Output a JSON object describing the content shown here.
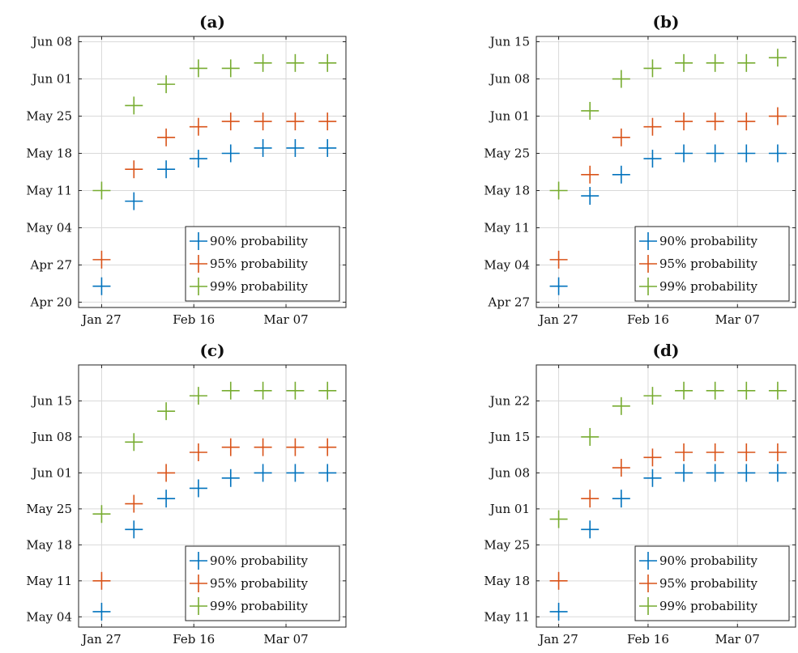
{
  "colors": {
    "p90": "#0072BD",
    "p95": "#D95319",
    "p99": "#77AC30",
    "grid": "#d9d9d9",
    "frame": "#222222"
  },
  "chart_data": [
    {
      "type": "scatter",
      "title": "(a)",
      "xlabel": "",
      "ylabel": "",
      "x": [
        "2020-01-27",
        "2020-02-03",
        "2020-02-10",
        "2020-02-17",
        "2020-02-24",
        "2020-03-02",
        "2020-03-09",
        "2020-03-16"
      ],
      "xticks": [
        "Jan  27",
        "Feb  16",
        "Mar  07"
      ],
      "xtick_values": [
        "2020-01-27",
        "2020-02-16",
        "2020-03-07"
      ],
      "xlim": [
        "2020-01-22",
        "2020-03-20"
      ],
      "yticks": [
        "Apr  20",
        "Apr  27",
        "May  04",
        "May  11",
        "May  18",
        "May  25",
        "Jun  01",
        "Jun  08"
      ],
      "ytick_values": [
        "2020-04-20",
        "2020-04-27",
        "2020-05-04",
        "2020-05-11",
        "2020-05-18",
        "2020-05-25",
        "2020-06-01",
        "2020-06-08"
      ],
      "ylim": [
        "2020-04-19",
        "2020-06-09"
      ],
      "grid": true,
      "legend_position": "bottom-right",
      "series": [
        {
          "name": "90% probability",
          "color_key": "p90",
          "values": [
            "2020-04-23",
            "2020-05-09",
            "2020-05-15",
            "2020-05-17",
            "2020-05-18",
            "2020-05-19",
            "2020-05-19",
            "2020-05-19"
          ]
        },
        {
          "name": "95% probability",
          "color_key": "p95",
          "values": [
            "2020-04-28",
            "2020-05-15",
            "2020-05-21",
            "2020-05-23",
            "2020-05-24",
            "2020-05-24",
            "2020-05-24",
            "2020-05-24"
          ]
        },
        {
          "name": "99% probability",
          "color_key": "p99",
          "values": [
            "2020-05-11",
            "2020-05-27",
            "2020-05-31",
            "2020-06-03",
            "2020-06-03",
            "2020-06-04",
            "2020-06-04",
            "2020-06-04"
          ]
        }
      ]
    },
    {
      "type": "scatter",
      "title": "(b)",
      "xlabel": "",
      "ylabel": "",
      "x": [
        "2020-01-27",
        "2020-02-03",
        "2020-02-10",
        "2020-02-17",
        "2020-02-24",
        "2020-03-02",
        "2020-03-09",
        "2020-03-16"
      ],
      "xticks": [
        "Jan  27",
        "Feb  16",
        "Mar  07"
      ],
      "xtick_values": [
        "2020-01-27",
        "2020-02-16",
        "2020-03-07"
      ],
      "xlim": [
        "2020-01-22",
        "2020-03-20"
      ],
      "yticks": [
        "Apr  27",
        "May  04",
        "May  11",
        "May  18",
        "May  25",
        "Jun  01",
        "Jun  08",
        "Jun  15"
      ],
      "ytick_values": [
        "2020-04-27",
        "2020-05-04",
        "2020-05-11",
        "2020-05-18",
        "2020-05-25",
        "2020-06-01",
        "2020-06-08",
        "2020-06-15"
      ],
      "ylim": [
        "2020-04-26",
        "2020-06-16"
      ],
      "grid": true,
      "legend_position": "bottom-right",
      "series": [
        {
          "name": "90% probability",
          "color_key": "p90",
          "values": [
            "2020-04-30",
            "2020-05-17",
            "2020-05-21",
            "2020-05-24",
            "2020-05-25",
            "2020-05-25",
            "2020-05-25",
            "2020-05-25"
          ]
        },
        {
          "name": "95% probability",
          "color_key": "p95",
          "values": [
            "2020-05-05",
            "2020-05-21",
            "2020-05-28",
            "2020-05-30",
            "2020-05-31",
            "2020-05-31",
            "2020-05-31",
            "2020-06-01"
          ]
        },
        {
          "name": "99% probability",
          "color_key": "p99",
          "values": [
            "2020-05-18",
            "2020-06-02",
            "2020-06-08",
            "2020-06-10",
            "2020-06-11",
            "2020-06-11",
            "2020-06-11",
            "2020-06-12"
          ]
        }
      ]
    },
    {
      "type": "scatter",
      "title": "(c)",
      "xlabel": "",
      "ylabel": "",
      "x": [
        "2020-01-27",
        "2020-02-03",
        "2020-02-10",
        "2020-02-17",
        "2020-02-24",
        "2020-03-02",
        "2020-03-09",
        "2020-03-16"
      ],
      "xticks": [
        "Jan  27",
        "Feb  16",
        "Mar  07"
      ],
      "xtick_values": [
        "2020-01-27",
        "2020-02-16",
        "2020-03-07"
      ],
      "xlim": [
        "2020-01-22",
        "2020-03-20"
      ],
      "yticks": [
        "May  04",
        "May  11",
        "May  18",
        "May  25",
        "Jun  01",
        "Jun  08",
        "Jun  15"
      ],
      "ytick_values": [
        "2020-05-04",
        "2020-05-11",
        "2020-05-18",
        "2020-05-25",
        "2020-06-01",
        "2020-06-08",
        "2020-06-15"
      ],
      "ylim": [
        "2020-05-02",
        "2020-06-22"
      ],
      "grid": true,
      "legend_position": "bottom-right",
      "series": [
        {
          "name": "90% probability",
          "color_key": "p90",
          "values": [
            "2020-05-05",
            "2020-05-21",
            "2020-05-27",
            "2020-05-29",
            "2020-05-31",
            "2020-06-01",
            "2020-06-01",
            "2020-06-01"
          ]
        },
        {
          "name": "95% probability",
          "color_key": "p95",
          "values": [
            "2020-05-11",
            "2020-05-26",
            "2020-06-01",
            "2020-06-05",
            "2020-06-06",
            "2020-06-06",
            "2020-06-06",
            "2020-06-06"
          ]
        },
        {
          "name": "99% probability",
          "color_key": "p99",
          "values": [
            "2020-05-24",
            "2020-06-07",
            "2020-06-13",
            "2020-06-16",
            "2020-06-17",
            "2020-06-17",
            "2020-06-17",
            "2020-06-17"
          ]
        }
      ]
    },
    {
      "type": "scatter",
      "title": "(d)",
      "xlabel": "",
      "ylabel": "",
      "x": [
        "2020-01-27",
        "2020-02-03",
        "2020-02-10",
        "2020-02-17",
        "2020-02-24",
        "2020-03-02",
        "2020-03-09",
        "2020-03-16"
      ],
      "xticks": [
        "Jan  27",
        "Feb  16",
        "Mar  07"
      ],
      "xtick_values": [
        "2020-01-27",
        "2020-02-16",
        "2020-03-07"
      ],
      "xlim": [
        "2020-01-22",
        "2020-03-20"
      ],
      "yticks": [
        "May  11",
        "May  18",
        "May  25",
        "Jun  01",
        "Jun  08",
        "Jun  15",
        "Jun  22"
      ],
      "ytick_values": [
        "2020-05-11",
        "2020-05-18",
        "2020-05-25",
        "2020-06-01",
        "2020-06-08",
        "2020-06-15",
        "2020-06-22"
      ],
      "ylim": [
        "2020-05-09",
        "2020-06-29"
      ],
      "grid": true,
      "legend_position": "bottom-right",
      "series": [
        {
          "name": "90% probability",
          "color_key": "p90",
          "values": [
            "2020-05-12",
            "2020-05-28",
            "2020-06-03",
            "2020-06-07",
            "2020-06-08",
            "2020-06-08",
            "2020-06-08",
            "2020-06-08"
          ]
        },
        {
          "name": "95% probability",
          "color_key": "p95",
          "values": [
            "2020-05-18",
            "2020-06-03",
            "2020-06-09",
            "2020-06-11",
            "2020-06-12",
            "2020-06-12",
            "2020-06-12",
            "2020-06-12"
          ]
        },
        {
          "name": "99% probability",
          "color_key": "p99",
          "values": [
            "2020-05-30",
            "2020-06-15",
            "2020-06-21",
            "2020-06-23",
            "2020-06-24",
            "2020-06-24",
            "2020-06-24",
            "2020-06-24"
          ]
        }
      ]
    }
  ]
}
